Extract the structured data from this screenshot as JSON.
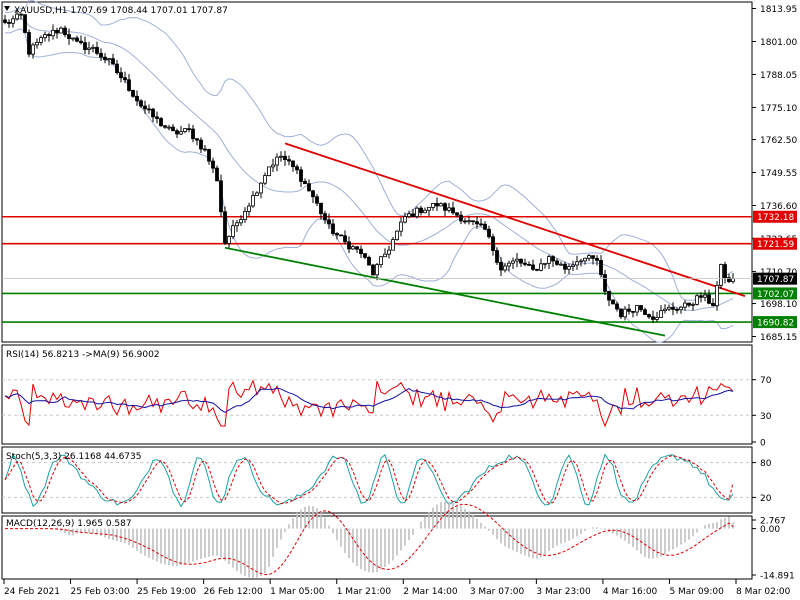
{
  "chart_data": {
    "type": "candlestick",
    "main": {
      "header": "XAUUSD,H1  1707.69 1708.44 1707.01 1707.87",
      "y_ticks": [
        "1813.95",
        "1801.00",
        "1788.05",
        "1775.10",
        "1762.50",
        "1749.55",
        "1736.60",
        "1723.65",
        "1710.70",
        "1698.10",
        "1685.15"
      ],
      "y_range": [
        1683.0,
        1816.5
      ],
      "current_price": "1707.87",
      "levels": [
        {
          "value": 1732.18,
          "label": "1732.18",
          "color": "#e00000"
        },
        {
          "value": 1721.59,
          "label": "1721.59",
          "color": "#e00000"
        },
        {
          "value": 1702.07,
          "label": "1702.07",
          "color": "#008000"
        },
        {
          "value": 1690.82,
          "label": "1690.82",
          "color": "#008000"
        }
      ],
      "trendlines": [
        {
          "color": "#e00000",
          "from": {
            "bar": 70,
            "price": 1761.0
          },
          "to": {
            "bar": 185,
            "price": 1701.0
          }
        },
        {
          "color": "#008000",
          "from": {
            "bar": 55,
            "price": 1720.0
          },
          "to": {
            "bar": 165,
            "price": 1685.5
          }
        }
      ],
      "close_anchors": [
        [
          0,
          1808
        ],
        [
          4,
          1811
        ],
        [
          6,
          1797
        ],
        [
          10,
          1803
        ],
        [
          14,
          1806
        ],
        [
          18,
          1800
        ],
        [
          22,
          1798
        ],
        [
          26,
          1793
        ],
        [
          30,
          1785
        ],
        [
          34,
          1776
        ],
        [
          38,
          1770
        ],
        [
          42,
          1765
        ],
        [
          46,
          1766
        ],
        [
          50,
          1758
        ],
        [
          53,
          1747
        ],
        [
          55,
          1722
        ],
        [
          58,
          1730
        ],
        [
          62,
          1740
        ],
        [
          66,
          1752
        ],
        [
          69,
          1756
        ],
        [
          73,
          1750
        ],
        [
          77,
          1740
        ],
        [
          81,
          1728
        ],
        [
          85,
          1722
        ],
        [
          89,
          1718
        ],
        [
          92,
          1710
        ],
        [
          96,
          1720
        ],
        [
          100,
          1732
        ],
        [
          104,
          1735
        ],
        [
          108,
          1737
        ],
        [
          112,
          1734
        ],
        [
          116,
          1730
        ],
        [
          120,
          1727
        ],
        [
          124,
          1712
        ],
        [
          128,
          1715
        ],
        [
          132,
          1711
        ],
        [
          136,
          1716
        ],
        [
          140,
          1712
        ],
        [
          144,
          1716
        ],
        [
          148,
          1715
        ],
        [
          150,
          1702
        ],
        [
          154,
          1694
        ],
        [
          158,
          1697
        ],
        [
          162,
          1693
        ],
        [
          166,
          1696
        ],
        [
          170,
          1697
        ],
        [
          174,
          1701
        ],
        [
          177,
          1698
        ],
        [
          179,
          1712
        ],
        [
          181,
          1706
        ],
        [
          182,
          1707.87
        ]
      ]
    },
    "rsi": {
      "header": "RSI(14) 56.8213  ->MA(9) 56.9002",
      "y_ticks": [
        "70",
        "30",
        "0"
      ],
      "levels": [
        70,
        30
      ],
      "value": 56.8213,
      "ma_value": 56.9002
    },
    "stoch": {
      "header": "Stoch(5,3,3) 26.1168 44.6735",
      "y_ticks": [
        "80",
        "20"
      ],
      "levels": [
        80,
        20
      ],
      "k": 26.1168,
      "d": 44.6735
    },
    "macd": {
      "header": "MACD(12,26,9) 1.965 0.587",
      "y_ticks": [
        "2.767",
        "0.00",
        "-14.891"
      ],
      "y_range": [
        -14.891,
        2.767
      ],
      "macd": 1.965,
      "signal": 0.587
    },
    "x_labels": [
      "24 Feb 2021",
      "25 Feb 03:00",
      "25 Feb 19:00",
      "26 Feb 12:00",
      "1 Mar 05:00",
      "1 Mar 21:00",
      "2 Mar 14:00",
      "3 Mar 07:00",
      "3 Mar 23:00",
      "4 Mar 16:00",
      "5 Mar 09:00",
      "8 Mar 02:00"
    ],
    "colors": {
      "candle": "#000000",
      "bands": "#9fb0d8",
      "rsi": "#e00000",
      "rsi_ma": "#1010a0",
      "stoch_k": "#20a0a0",
      "stoch_d": "#e00000",
      "macd_hist": "#c0c0c0",
      "macd_signal": "#e00000",
      "grid": "#c8c8c8"
    }
  }
}
